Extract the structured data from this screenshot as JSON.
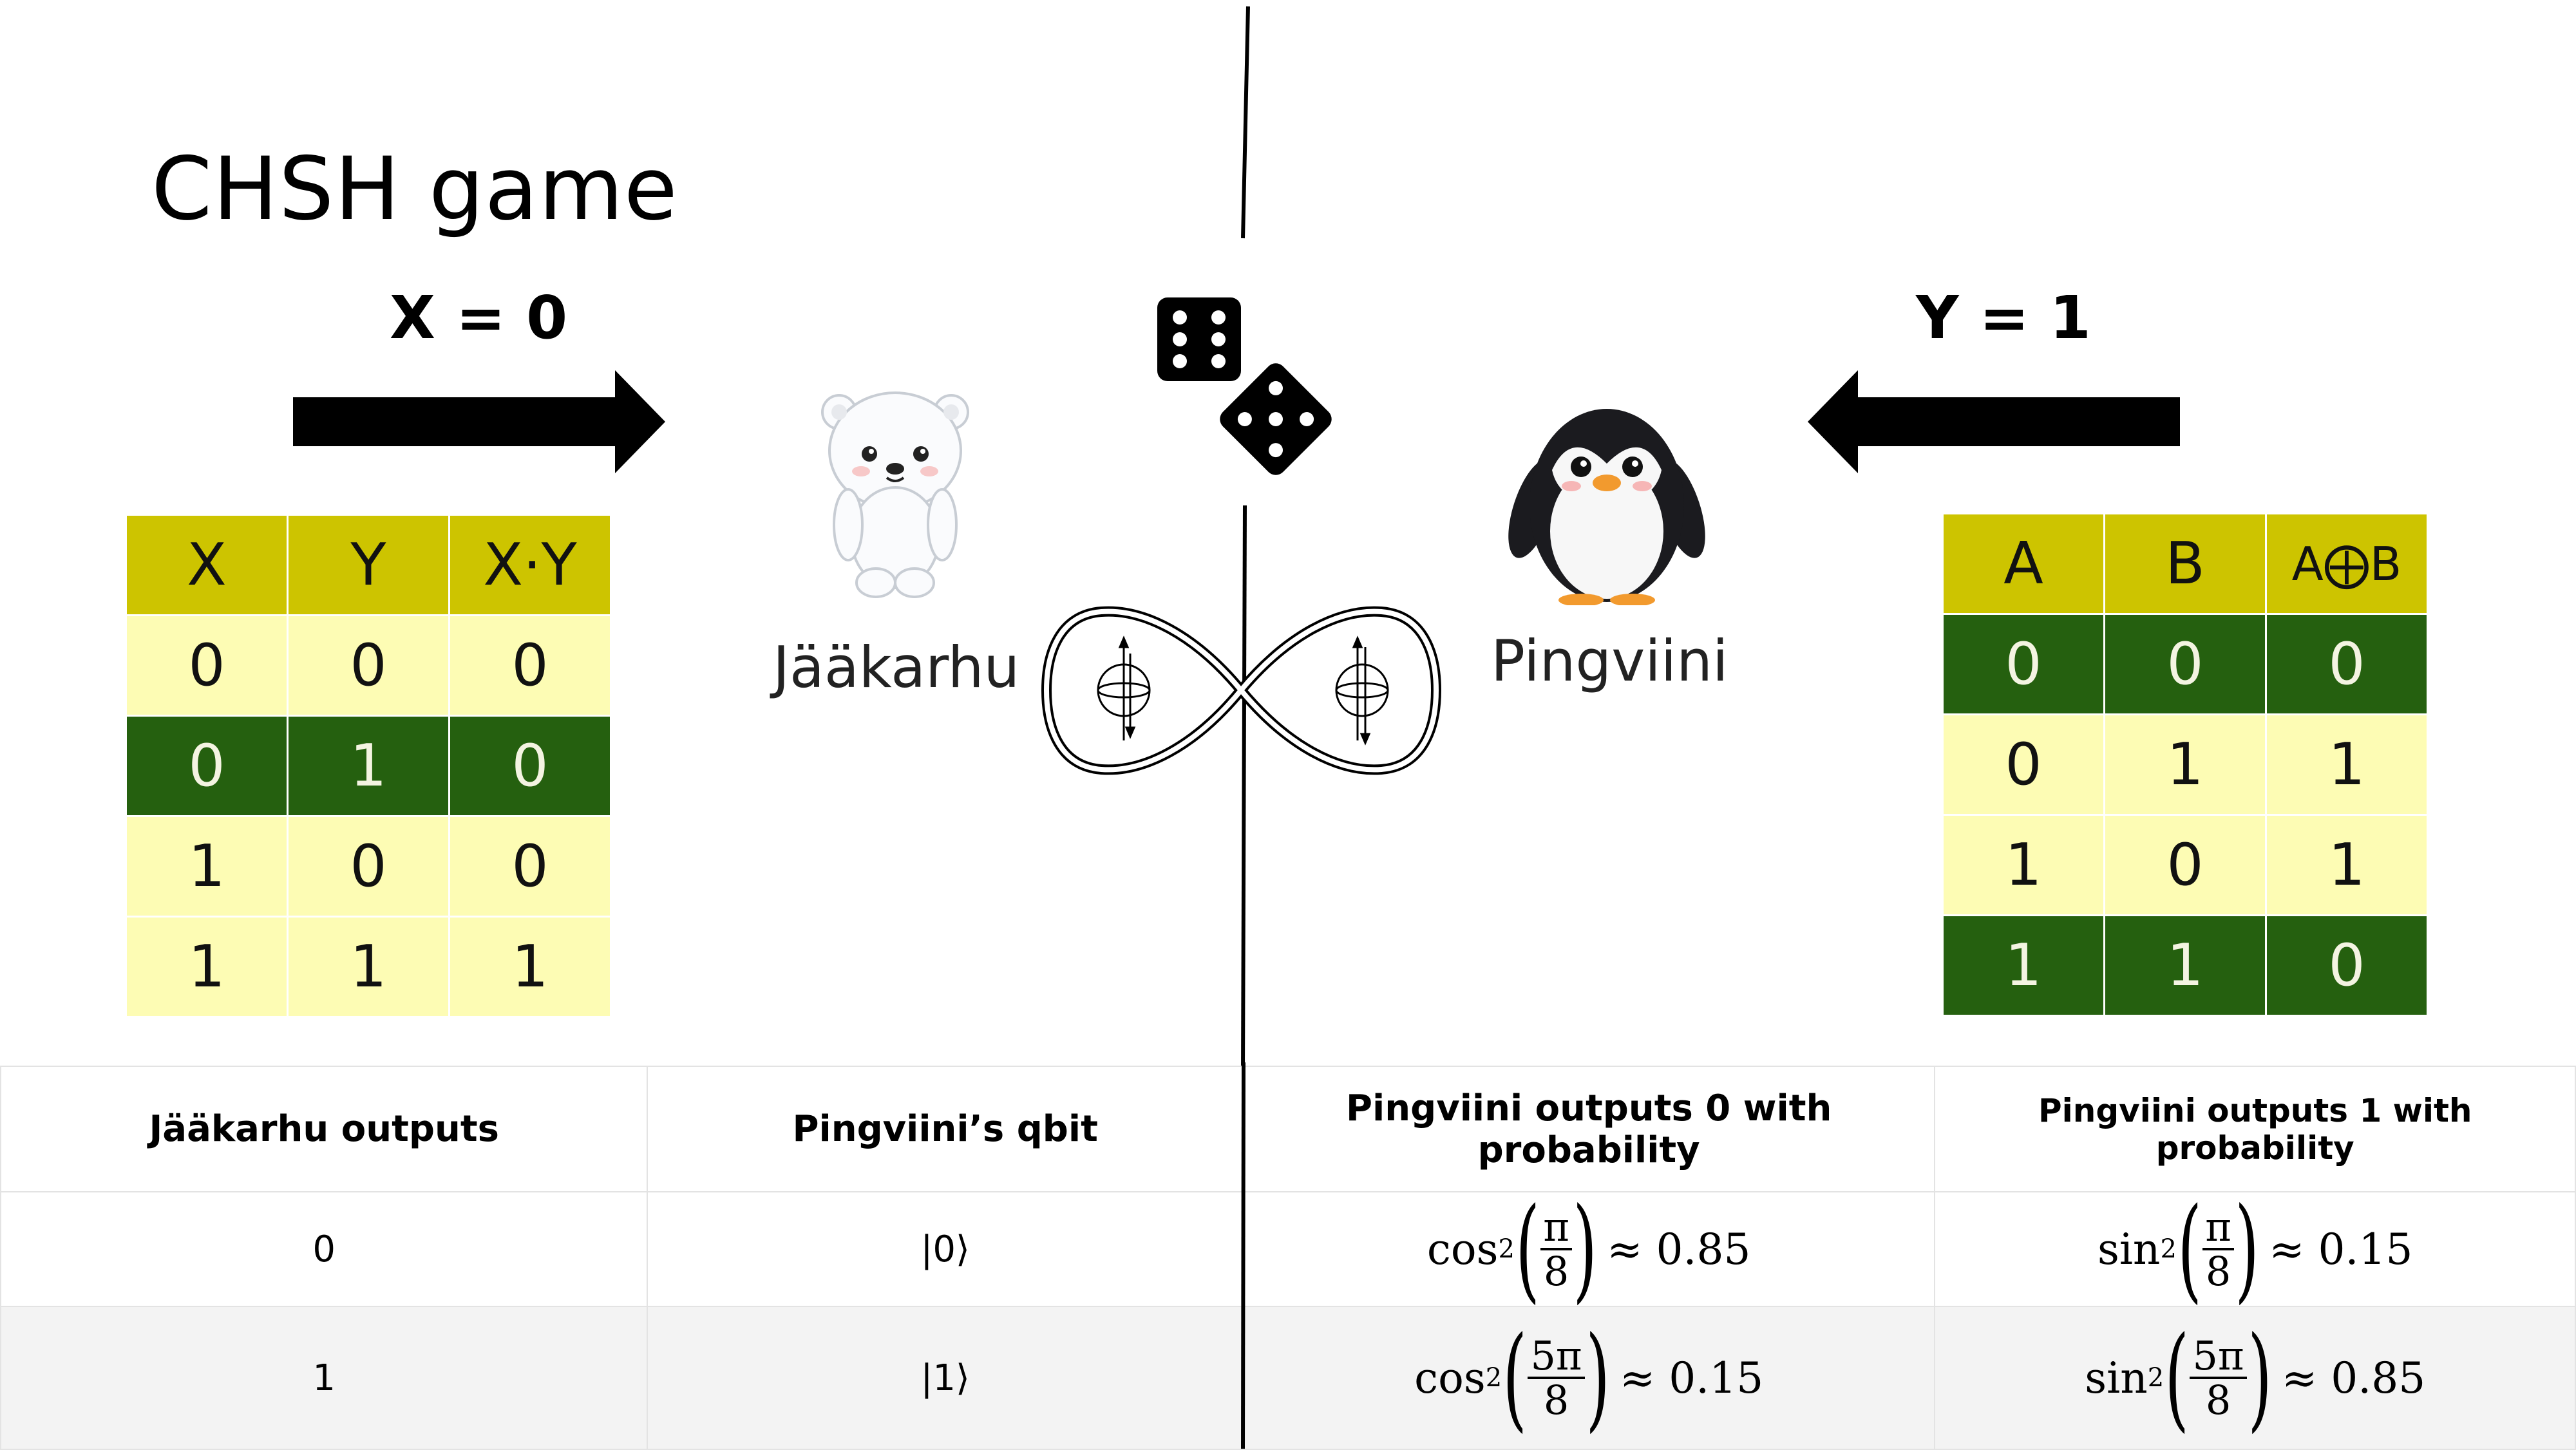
{
  "title": "CHSH game",
  "inputs": {
    "x_label": "X = 0",
    "y_label": "Y = 1"
  },
  "players": {
    "left_name": "Jääkarhu",
    "right_name": "Pingviini"
  },
  "left_table": {
    "headers": [
      "X",
      "Y",
      "X·Y"
    ],
    "rows": [
      {
        "cells": [
          "0",
          "0",
          "0"
        ],
        "style": "lite"
      },
      {
        "cells": [
          "0",
          "1",
          "0"
        ],
        "style": "dark"
      },
      {
        "cells": [
          "1",
          "0",
          "0"
        ],
        "style": "lite"
      },
      {
        "cells": [
          "1",
          "1",
          "1"
        ],
        "style": "lite"
      }
    ]
  },
  "right_table": {
    "headers": [
      "A",
      "B",
      "A⨁B"
    ],
    "rows": [
      {
        "cells": [
          "0",
          "0",
          "0"
        ],
        "style": "dark"
      },
      {
        "cells": [
          "0",
          "1",
          "1"
        ],
        "style": "lite"
      },
      {
        "cells": [
          "1",
          "0",
          "1"
        ],
        "style": "lite"
      },
      {
        "cells": [
          "1",
          "1",
          "0"
        ],
        "style": "dark"
      }
    ]
  },
  "prob_table": {
    "headers": [
      "Jääkarhu outputs",
      "Pingviini’s qbit",
      "Pingviini outputs 0 with probability",
      "Pingviini outputs 1 with probability"
    ],
    "rows": [
      {
        "out": "0",
        "qbit": "|0⟩",
        "p0": {
          "fn": "cos",
          "sq": "2",
          "num": "π",
          "den": "8",
          "approx": "≈ 0.85"
        },
        "p1": {
          "fn": "sin",
          "sq": "2",
          "num": "π",
          "den": "8",
          "approx": "≈ 0.15"
        }
      },
      {
        "out": "1",
        "qbit": "|1⟩",
        "p0": {
          "fn": "cos",
          "sq": "2",
          "num": "5π",
          "den": "8",
          "approx": "≈ 0.15"
        },
        "p1": {
          "fn": "sin",
          "sq": "2",
          "num": "5π",
          "den": "8",
          "approx": "≈ 0.85"
        }
      }
    ],
    "paren_open": "(",
    "paren_close": ")"
  },
  "colors": {
    "header_olive": "#cdc400",
    "light_yellow": "#fdfcb4",
    "dark_green": "#25600f"
  },
  "icons": [
    "arrow-right-icon",
    "arrow-left-icon",
    "dice-icon",
    "polar-bear-icon",
    "penguin-icon",
    "entanglement-infinity-icon",
    "qubit-icon"
  ]
}
